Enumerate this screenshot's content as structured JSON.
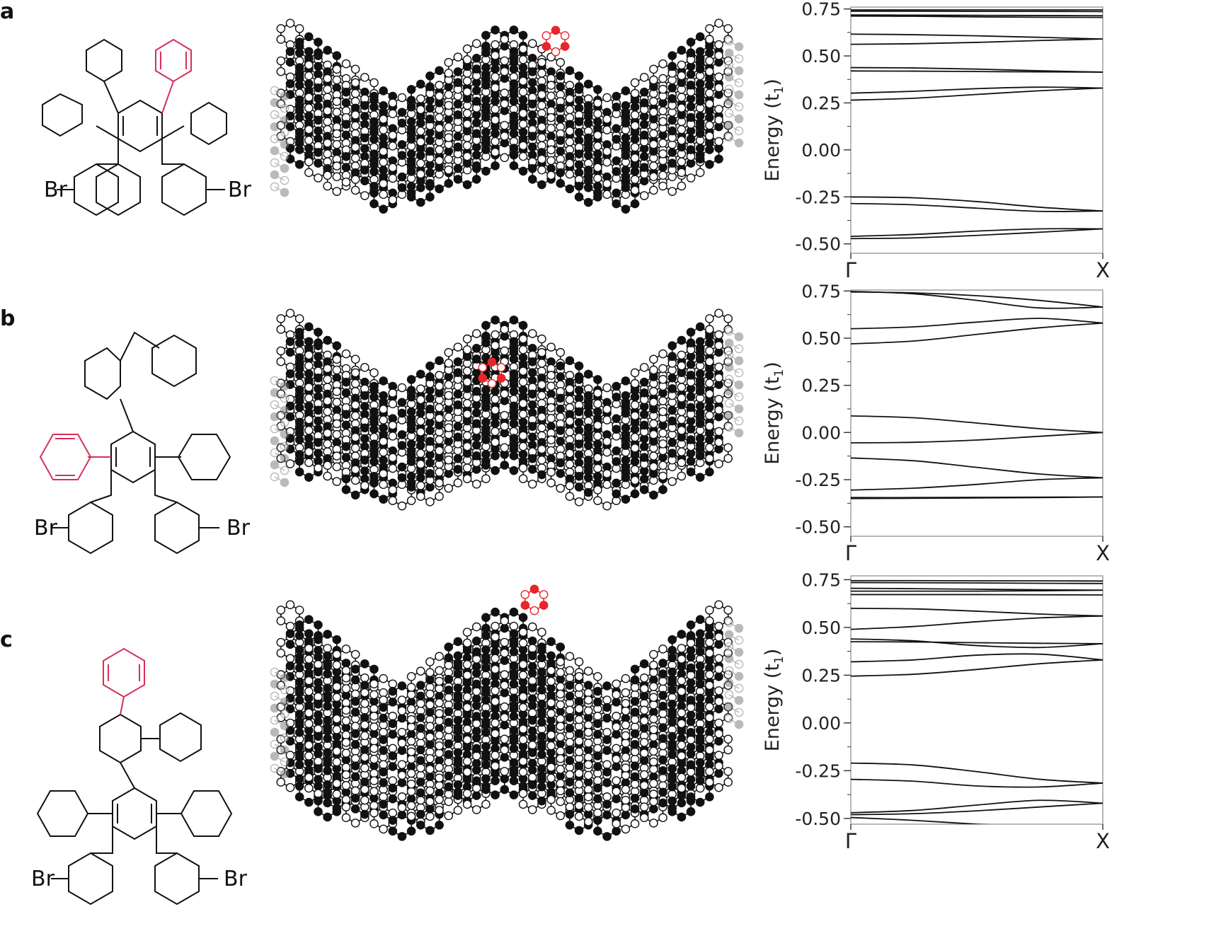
{
  "colors": {
    "highlight": "#d6305a",
    "red_site": "#e8252a",
    "edge_gray": "#8a8a8a",
    "black": "#111111"
  },
  "panels": [
    {
      "label": "a",
      "molecule": {
        "left_substituent": "Br",
        "right_substituent": "Br"
      },
      "chart_data": {
        "type": "line",
        "title": "",
        "xlabel": "",
        "ylabel": "Energy (t",
        "ylabel_sub": "1",
        "ylabel_close": ")",
        "x_ticks": [
          "Γ",
          "X"
        ],
        "y_ticks": [
          "0.75",
          "0.50",
          "0.25",
          "0.00",
          "-0.25",
          "-0.50"
        ],
        "ylim": [
          -0.55,
          0.76
        ],
        "x": [
          0.0,
          0.25,
          0.5,
          0.75,
          1.0
        ],
        "series": [
          {
            "values": [
              0.745,
              0.745,
              0.745,
              0.745,
              0.745
            ]
          },
          {
            "values": [
              0.738,
              0.738,
              0.737,
              0.737,
              0.736
            ]
          },
          {
            "values": [
              0.718,
              0.717,
              0.716,
              0.715,
              0.714
            ]
          },
          {
            "values": [
              0.712,
              0.711,
              0.708,
              0.706,
              0.705
            ]
          },
          {
            "values": [
              0.616,
              0.613,
              0.607,
              0.599,
              0.59
            ]
          },
          {
            "values": [
              0.562,
              0.565,
              0.572,
              0.582,
              0.59
            ]
          },
          {
            "values": [
              0.438,
              0.436,
              0.43,
              0.421,
              0.414
            ]
          },
          {
            "values": [
              0.42,
              0.419,
              0.417,
              0.415,
              0.414
            ]
          },
          {
            "values": [
              0.302,
              0.312,
              0.326,
              0.334,
              0.329
            ]
          },
          {
            "values": [
              0.265,
              0.275,
              0.295,
              0.315,
              0.329
            ]
          },
          {
            "values": [
              -0.25,
              -0.255,
              -0.275,
              -0.305,
              -0.325
            ]
          },
          {
            "values": [
              -0.285,
              -0.292,
              -0.31,
              -0.327,
              -0.325
            ]
          },
          {
            "values": [
              -0.46,
              -0.45,
              -0.432,
              -0.42,
              -0.42
            ]
          },
          {
            "values": [
              -0.472,
              -0.468,
              -0.455,
              -0.438,
              -0.42
            ]
          }
        ]
      }
    },
    {
      "label": "b",
      "molecule": {
        "left_substituent": "Br",
        "right_substituent": "Br"
      },
      "chart_data": {
        "type": "line",
        "title": "",
        "xlabel": "",
        "ylabel": "Energy (t",
        "ylabel_sub": "1",
        "ylabel_close": ")",
        "x_ticks": [
          "Γ",
          "X"
        ],
        "y_ticks": [
          "0.75",
          "0.50",
          "0.25",
          "0.00",
          "-0.25",
          "-0.50"
        ],
        "ylim": [
          -0.55,
          0.755
        ],
        "x": [
          0.0,
          0.25,
          0.5,
          0.75,
          1.0
        ],
        "series": [
          {
            "values": [
              0.748,
              0.735,
              0.7,
              0.66,
              0.665
            ]
          },
          {
            "values": [
              0.745,
              0.74,
              0.725,
              0.7,
              0.665
            ]
          },
          {
            "values": [
              0.55,
              0.56,
              0.585,
              0.605,
              0.58
            ]
          },
          {
            "values": [
              0.47,
              0.485,
              0.52,
              0.555,
              0.58
            ]
          },
          {
            "values": [
              0.088,
              0.078,
              0.05,
              0.02,
              0.0
            ]
          },
          {
            "values": [
              -0.055,
              -0.052,
              -0.04,
              -0.02,
              0.0
            ]
          },
          {
            "values": [
              -0.135,
              -0.15,
              -0.185,
              -0.22,
              -0.24
            ]
          },
          {
            "values": [
              -0.305,
              -0.295,
              -0.275,
              -0.25,
              -0.24
            ]
          },
          {
            "values": [
              -0.345,
              -0.345,
              -0.344,
              -0.343,
              -0.342
            ]
          },
          {
            "values": [
              -0.35,
              -0.349,
              -0.347,
              -0.345,
              -0.342
            ]
          }
        ]
      }
    },
    {
      "label": "c",
      "molecule": {
        "left_substituent": "Br",
        "right_substituent": "Br"
      },
      "chart_data": {
        "type": "line",
        "title": "",
        "xlabel": "",
        "ylabel": "Energy (t",
        "ylabel_sub": "1",
        "ylabel_close": ")",
        "x_ticks": [
          "Γ",
          "X"
        ],
        "y_ticks": [
          "0.75",
          "0.50",
          "0.25",
          "0.00",
          "-0.25",
          "-0.50"
        ],
        "ylim": [
          -0.53,
          0.77
        ],
        "x": [
          0.0,
          0.25,
          0.5,
          0.75,
          1.0
        ],
        "series": [
          {
            "values": [
              0.745,
              0.745,
              0.744,
              0.744,
              0.743
            ]
          },
          {
            "values": [
              0.735,
              0.734,
              0.733,
              0.731,
              0.73
            ]
          },
          {
            "values": [
              0.705,
              0.703,
              0.7,
              0.697,
              0.695
            ]
          },
          {
            "values": [
              0.69,
              0.69,
              0.69,
              0.692,
              0.695
            ]
          },
          {
            "values": [
              0.672,
              0.672,
              0.672,
              0.671,
              0.67
            ]
          },
          {
            "values": [
              0.6,
              0.597,
              0.585,
              0.57,
              0.56
            ]
          },
          {
            "values": [
              0.49,
              0.505,
              0.53,
              0.55,
              0.56
            ]
          },
          {
            "values": [
              0.44,
              0.43,
              0.405,
              0.395,
              0.415
            ]
          },
          {
            "values": [
              0.425,
              0.424,
              0.42,
              0.417,
              0.415
            ]
          },
          {
            "values": [
              0.32,
              0.33,
              0.355,
              0.36,
              0.33
            ]
          },
          {
            "values": [
              0.245,
              0.255,
              0.28,
              0.31,
              0.33
            ]
          },
          {
            "values": [
              -0.21,
              -0.22,
              -0.255,
              -0.295,
              -0.315
            ]
          },
          {
            "values": [
              -0.295,
              -0.305,
              -0.33,
              -0.335,
              -0.315
            ]
          },
          {
            "values": [
              -0.47,
              -0.458,
              -0.43,
              -0.405,
              -0.42
            ]
          },
          {
            "values": [
              -0.48,
              -0.475,
              -0.46,
              -0.44,
              -0.42
            ]
          },
          {
            "values": [
              -0.495,
              -0.51,
              -0.53,
              -0.545,
              -0.56
            ]
          }
        ]
      }
    }
  ]
}
